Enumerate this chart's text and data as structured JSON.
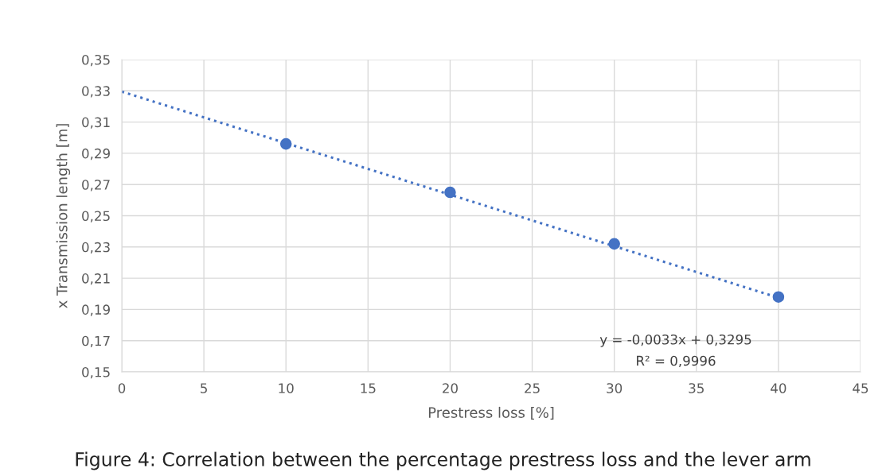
{
  "chart_data": {
    "type": "scatter",
    "xlabel": "Prestress loss [%]",
    "ylabel": "x Transmission length [m]",
    "x": [
      10,
      20,
      30,
      40
    ],
    "series": [
      {
        "color": "#4472c4",
        "values": [
          0.296,
          0.265,
          0.232,
          0.198
        ],
        "marker": "circle"
      },
      {
        "type": "line",
        "color": "#4472c4",
        "x": [
          0,
          40
        ],
        "values": [
          0.3295,
          0.1975
        ],
        "line_style": "dotted",
        "marker": "none"
      }
    ],
    "xlim": [
      0,
      45
    ],
    "xticks": [
      0,
      5,
      10,
      15,
      20,
      25,
      30,
      35,
      40,
      45
    ],
    "ylim": [
      0.15,
      0.35
    ],
    "yticks": [
      {
        "value": 0.15,
        "label": "0,15"
      },
      {
        "value": 0.17,
        "label": "0,17"
      },
      {
        "value": 0.19,
        "label": "0,19"
      },
      {
        "value": 0.21,
        "label": "0,21"
      },
      {
        "value": 0.23,
        "label": "0,23"
      },
      {
        "value": 0.25,
        "label": "0,25"
      },
      {
        "value": 0.27,
        "label": "0,27"
      },
      {
        "value": 0.29,
        "label": "0,29"
      },
      {
        "value": 0.31,
        "label": "0,31"
      },
      {
        "value": 0.33,
        "label": "0,33"
      },
      {
        "value": 0.35,
        "label": "0,35"
      }
    ],
    "grid": true,
    "legend": false,
    "annotations": [
      "y = -0,0033x + 0,3295",
      "R² = 0,9996",
      "Figure 4: Correlation between the percentage prestress loss and the lever arm"
    ]
  }
}
